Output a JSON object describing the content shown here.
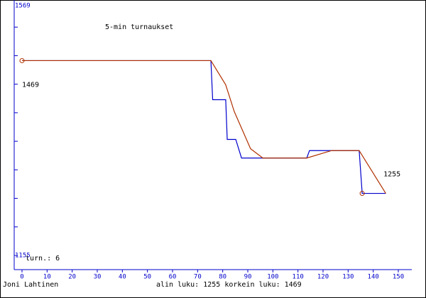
{
  "chart_data": {
    "type": "line",
    "title": "5-min turnaukset",
    "xlim": [
      0,
      150
    ],
    "xticks": [
      0,
      10,
      20,
      30,
      40,
      50,
      60,
      70,
      80,
      90,
      100,
      110,
      120,
      130,
      140,
      150
    ],
    "ylim": [
      1155,
      1569
    ],
    "yticks": [
      1155,
      1569
    ],
    "games_label": "turn.: 6",
    "author": "Joni Lahtinen",
    "footer": "alin luku: 1255  korkein luku: 1469",
    "series": [
      {
        "color": "#0000cc",
        "x": [
          0,
          75.3,
          76,
          81.2,
          81.8,
          85.2,
          87.5,
          113.5,
          114.6,
          134.4,
          135.6,
          145
        ],
        "values": [
          1469,
          1469,
          1406,
          1406,
          1342,
          1342,
          1312,
          1312,
          1324,
          1324,
          1255,
          1255
        ]
      },
      {
        "color": "#b03000",
        "x": [
          0,
          75.3,
          81.2,
          84.6,
          91.1,
          96,
          113.5,
          123.4,
          134.4,
          145
        ],
        "values": [
          1469,
          1469,
          1430,
          1387,
          1327,
          1312,
          1312,
          1324,
          1324,
          1255
        ]
      }
    ],
    "annotations": [
      {
        "label": "1469",
        "x": 0,
        "value": 1469
      },
      {
        "label": "1255",
        "x": 135.6,
        "value": 1255
      }
    ]
  }
}
